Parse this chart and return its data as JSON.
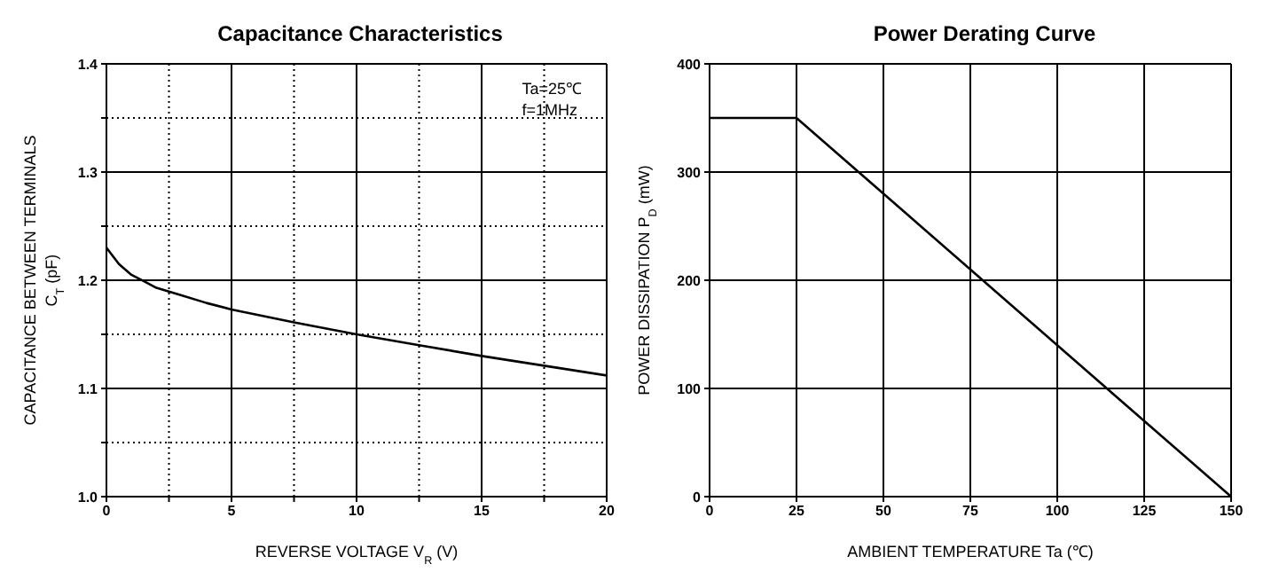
{
  "chart_data": [
    {
      "type": "line",
      "title": "Capacitance Characteristics",
      "xlabel": "REVERSE VOLTAGE  V$_{R}$  (V)",
      "ylabel": "CAPACITANCE BETWEEN TERMINALS\nC$_{T}$  (pF)",
      "annotations": [
        "Ta=25℃",
        "f=1MHz"
      ],
      "x": [
        0,
        0.5,
        1,
        1.5,
        2,
        3,
        4,
        5,
        7.5,
        10,
        12.5,
        15,
        17.5,
        20
      ],
      "series": [
        {
          "color": "#000000",
          "values": [
            1.23,
            1.215,
            1.205,
            1.199,
            1.193,
            1.186,
            1.179,
            1.173,
            1.161,
            1.15,
            1.14,
            1.13,
            1.121,
            1.112
          ]
        }
      ],
      "xlim": [
        0,
        20
      ],
      "xticks": [
        0,
        {
          "value": 2.5,
          "label": null
        },
        5,
        {
          "value": 7.5,
          "label": null
        },
        10,
        {
          "value": 12.5,
          "label": null
        },
        15,
        {
          "value": 17.5,
          "label": null
        },
        20
      ],
      "ylim": [
        1.0,
        1.4
      ],
      "yticks": [
        {
          "value": 1.0,
          "label": "1.0"
        },
        {
          "value": 1.05,
          "label": null
        },
        1.1,
        {
          "value": 1.15,
          "label": null
        },
        1.2,
        {
          "value": 1.25,
          "label": null
        },
        1.3,
        {
          "value": 1.35,
          "label": null
        },
        1.4
      ],
      "grid": true,
      "legend": false,
      "marker": "none",
      "line_style": "solid"
    },
    {
      "type": "line",
      "title": "Power Derating Curve",
      "xlabel": "AMBIENT TEMPERATURE  Ta  (℃)",
      "ylabel": "POWER DISSIPATION  P$_{D}$  (mW)",
      "x": [
        0,
        25,
        150
      ],
      "series": [
        {
          "color": "#000000",
          "values": [
            350,
            350,
            0
          ]
        }
      ],
      "xlim": [
        0,
        150
      ],
      "xticks": [
        0,
        25,
        50,
        75,
        100,
        125,
        150
      ],
      "ylim": [
        0,
        400
      ],
      "yticks": [
        0,
        100,
        200,
        300,
        400
      ],
      "grid": true,
      "legend": false,
      "marker": "none",
      "line_style": "solid"
    }
  ]
}
